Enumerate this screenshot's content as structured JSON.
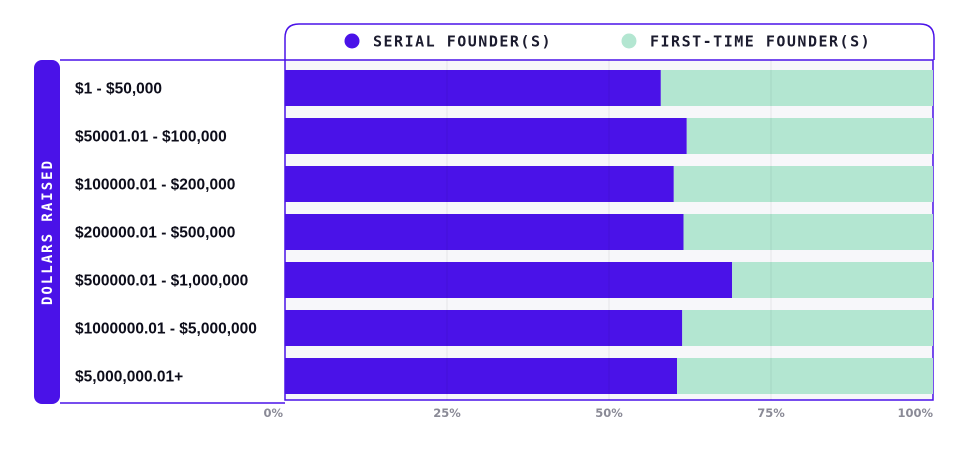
{
  "chart_data": {
    "type": "bar",
    "orientation": "horizontal",
    "stacked": true,
    "normalized": true,
    "ylabel": "DOLLARS RAISED",
    "xlabel": "",
    "xlim": [
      0,
      100
    ],
    "x_ticks": [
      "0%",
      "25%",
      "50%",
      "75%",
      "100%"
    ],
    "legend_position": "top",
    "categories": [
      "$1 - $50,000",
      "$50001.01 - $100,000",
      "$100000.01 - $200,000",
      "$200000.01 - $500,000",
      "$500000.01 - $1,000,000",
      "$1000000.01 - $5,000,000",
      "$5,000,000.01+"
    ],
    "series": [
      {
        "name": "SERIAL FOUNDER(S)",
        "color": "#4a12e8",
        "values": [
          58,
          62,
          60,
          61.5,
          69,
          61.3,
          60.5
        ]
      },
      {
        "name": "FIRST-TIME FOUNDER(S)",
        "color": "#b3e6d1",
        "values": [
          42,
          38,
          40,
          38.5,
          31,
          38.7,
          39.5
        ]
      }
    ],
    "grid": true
  }
}
